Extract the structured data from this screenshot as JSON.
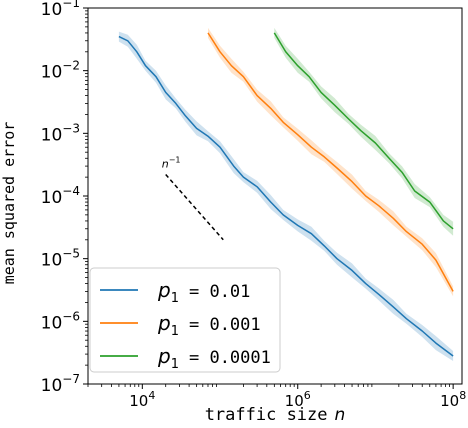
{
  "chart_data": {
    "type": "line",
    "title": "",
    "xlabel": "traffic size",
    "xlabel_var": "n",
    "ylabel": "mean squared error",
    "xscale": "log",
    "yscale": "log",
    "xlim": [
      2000,
      130000000
    ],
    "ylim": [
      1e-07,
      0.1
    ],
    "x_ticks": [
      {
        "value": 10000,
        "base": "10",
        "exp": "4"
      },
      {
        "value": 1000000,
        "base": "10",
        "exp": "6"
      },
      {
        "value": 100000000,
        "base": "10",
        "exp": "8"
      }
    ],
    "y_ticks": [
      {
        "value": 1e-07,
        "base": "10",
        "exp": "−7"
      },
      {
        "value": 1e-06,
        "base": "10",
        "exp": "−6"
      },
      {
        "value": 1e-05,
        "base": "10",
        "exp": "−5"
      },
      {
        "value": 0.0001,
        "base": "10",
        "exp": "−4"
      },
      {
        "value": 0.001,
        "base": "10",
        "exp": "−3"
      },
      {
        "value": 0.01,
        "base": "10",
        "exp": "−2"
      },
      {
        "value": 0.1,
        "base": "10",
        "exp": "−1"
      }
    ],
    "grid": false,
    "legend": "bottom-left",
    "reference_line": {
      "label_base": "n",
      "label_exp": "−1",
      "x": [
        20000,
        110000
      ],
      "y": [
        0.00022,
        2e-05
      ]
    },
    "series": [
      {
        "name_var": "p",
        "name_sub": "1",
        "name_value": "= 0.01",
        "color": "#1f77b4",
        "x": [
          5000,
          6500,
          8500,
          11000,
          15000,
          20000,
          27000,
          36000,
          50000,
          70000,
          100000,
          150000,
          200000,
          300000,
          450000,
          650000,
          1000000,
          1500000,
          2200000,
          3200000,
          5000000,
          7500000,
          11000000,
          17000000,
          25000000,
          40000000,
          60000000,
          100000000
        ],
        "y": [
          0.035,
          0.03,
          0.02,
          0.012,
          0.008,
          0.0045,
          0.003,
          0.0019,
          0.0012,
          0.0009,
          0.0006,
          0.0003,
          0.0002,
          0.00014,
          8e-05,
          5e-05,
          3.4e-05,
          2.5e-05,
          1.6e-05,
          1e-05,
          6.5e-06,
          4e-06,
          2.7e-06,
          1.7e-06,
          1.1e-06,
          7e-07,
          4.5e-07,
          2.8e-07
        ]
      },
      {
        "name_var": "p",
        "name_sub": "1",
        "name_value": "= 0.001",
        "color": "#ff7f0e",
        "x": [
          70000,
          100000,
          140000,
          200000,
          300000,
          450000,
          650000,
          1000000,
          1500000,
          2200000,
          3200000,
          5000000,
          7500000,
          11000000,
          17000000,
          25000000,
          40000000,
          60000000,
          100000000
        ],
        "y": [
          0.04,
          0.02,
          0.012,
          0.008,
          0.004,
          0.0025,
          0.0015,
          0.00095,
          0.0006,
          0.00042,
          0.00028,
          0.00017,
          0.0001,
          7e-05,
          4.4e-05,
          2.7e-05,
          1.7e-05,
          9.5e-06,
          3e-06
        ]
      },
      {
        "name_var": "p",
        "name_sub": "1",
        "name_value": "= 0.0001",
        "color": "#2ca02c",
        "x": [
          500000,
          700000,
          1000000,
          1400000,
          2000000,
          3000000,
          4500000,
          6500000,
          10000000,
          15000000,
          22000000,
          32000000,
          50000000,
          75000000,
          100000000
        ],
        "y": [
          0.04,
          0.02,
          0.012,
          0.008,
          0.0045,
          0.0028,
          0.0017,
          0.0011,
          0.0007,
          0.0004,
          0.00024,
          0.00012,
          8e-05,
          4e-05,
          3e-05
        ]
      }
    ]
  }
}
